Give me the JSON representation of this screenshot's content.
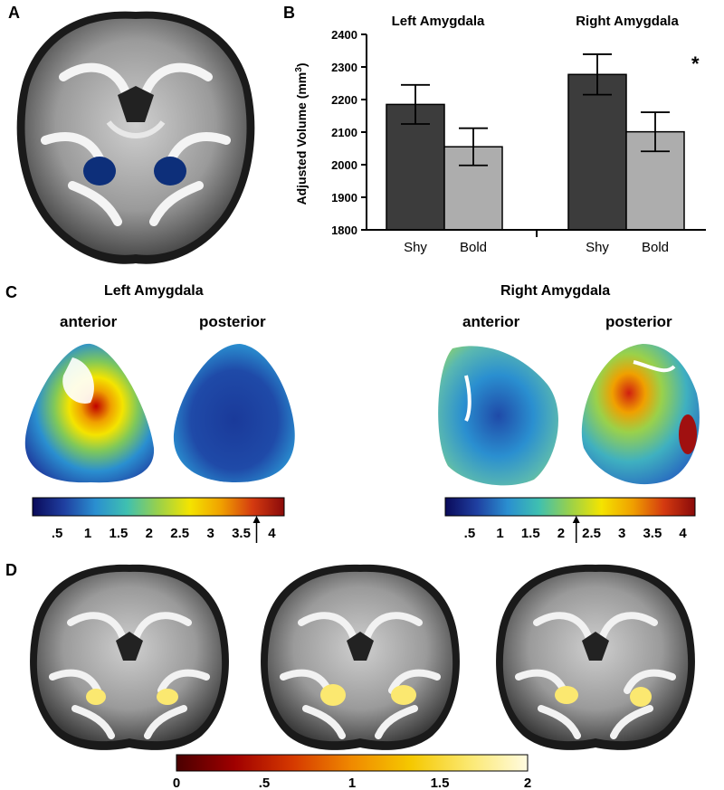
{
  "panels": {
    "A": {
      "letter": "A"
    },
    "B": {
      "letter": "B"
    },
    "C": {
      "letter": "C"
    },
    "D": {
      "letter": "D"
    }
  },
  "chart_data": {
    "type": "bar",
    "groups": [
      "Left Amygdala",
      "Right Amygdala"
    ],
    "categories": [
      "Shy",
      "Bold"
    ],
    "series": [
      {
        "group": "Left Amygdala",
        "values": [
          2185,
          2055
        ],
        "errors": [
          60,
          57
        ]
      },
      {
        "group": "Right Amygdala",
        "values": [
          2277,
          2101
        ],
        "errors": [
          62,
          60
        ]
      }
    ],
    "ylabel_main": "Adjusted Volume (mm",
    "ylabel_sup": "3",
    "ylabel_end": ")",
    "ylim": [
      1800,
      2400
    ],
    "yticks": [
      1800,
      1900,
      2000,
      2100,
      2200,
      2300,
      2400
    ],
    "significance": {
      "group": "Right Amygdala",
      "marker": "*"
    },
    "colors": {
      "Shy": "#3c3c3c",
      "Bold": "#adadad"
    }
  },
  "panelC": {
    "left": {
      "title": "Left Amygdala",
      "anterior": "anterior",
      "posterior": "posterior",
      "ticks": [
        ".5",
        "1",
        "1.5",
        "2",
        "2.5",
        "3",
        "3.5",
        "4"
      ],
      "arrow_value": 3.75
    },
    "right": {
      "title": "Right Amygdala",
      "anterior": "anterior",
      "posterior": "posterior",
      "ticks": [
        ".5",
        "1",
        "1.5",
        "2",
        "2.5",
        "3",
        "3.5",
        "4"
      ],
      "arrow_value": 2.25
    },
    "colormap": [
      "#0a0a5a",
      "#1f3fa0",
      "#2a8fd0",
      "#3fc0b0",
      "#9ad14a",
      "#f4e400",
      "#f0a000",
      "#d43a10",
      "#8a0a0a"
    ]
  },
  "panelD": {
    "ticks": [
      "0",
      ".5",
      "1",
      "1.5",
      "2"
    ],
    "colormap": [
      "#4a0000",
      "#a00000",
      "#d63a00",
      "#f08a00",
      "#f5c800",
      "#fbe870",
      "#fffbe0"
    ]
  }
}
